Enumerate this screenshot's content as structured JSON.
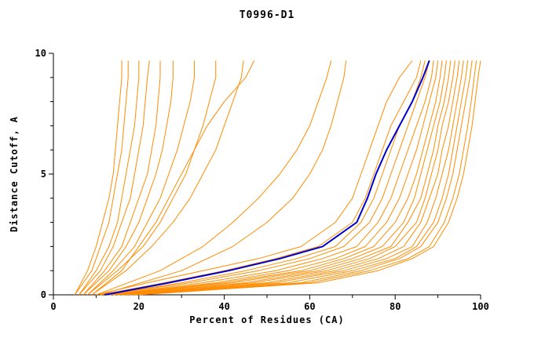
{
  "chart_data": {
    "type": "line",
    "title": "T0996-D1",
    "xlabel": "Percent of Residues (CA)",
    "ylabel": "Distance Cutoff, A",
    "xlim": [
      0,
      100
    ],
    "ylim": [
      0,
      10
    ],
    "x_major_ticks": [
      0,
      20,
      40,
      60,
      80,
      100
    ],
    "x_minor_step": 10,
    "y_major_ticks": [
      0,
      5,
      10
    ],
    "y_minor_step": 1,
    "grid": false,
    "legend": "none",
    "colors": {
      "model_line": "#ff8c00",
      "highlight_line": "#0000cd",
      "axis": "#000000"
    },
    "levels": {
      "a": [
        0,
        1,
        2,
        3,
        4,
        5,
        6,
        7,
        8,
        9,
        9.7
      ],
      "b": [
        0,
        0.5,
        1,
        1.5,
        2,
        3,
        4,
        5,
        6,
        7,
        8,
        9,
        9.7
      ]
    },
    "series": [
      {
        "color": "#ff8c00",
        "width": 1,
        "levels": "a",
        "x": [
          5,
          8,
          10,
          11.5,
          13,
          14,
          14.5,
          15,
          15.5,
          16,
          16
        ]
      },
      {
        "color": "#ff8c00",
        "width": 1,
        "levels": "a",
        "x": [
          5,
          9,
          11,
          13,
          14,
          15,
          16,
          16.5,
          17,
          17.5,
          17.5
        ]
      },
      {
        "color": "#ff8c00",
        "width": 1,
        "levels": "a",
        "x": [
          6,
          10,
          13,
          15,
          16,
          17,
          18,
          19,
          19.5,
          20,
          20
        ]
      },
      {
        "color": "#ff8c00",
        "width": 1,
        "levels": "a",
        "x": [
          6,
          11,
          14,
          16,
          18,
          19,
          20,
          21,
          21.5,
          22,
          22.5
        ]
      },
      {
        "color": "#ff8c00",
        "width": 1,
        "levels": "a",
        "x": [
          7,
          12,
          16,
          18,
          20,
          22,
          23,
          24,
          24.5,
          25,
          25
        ]
      },
      {
        "color": "#ff8c00",
        "width": 1,
        "levels": "a",
        "x": [
          7,
          13,
          17,
          20,
          22,
          24,
          25.5,
          26.5,
          27.5,
          28,
          28
        ]
      },
      {
        "color": "#ff8c00",
        "width": 1,
        "levels": "a",
        "x": [
          8,
          14,
          19,
          22,
          25,
          27,
          29,
          30.5,
          32,
          33,
          33
        ]
      },
      {
        "color": "#ff8c00",
        "width": 1,
        "levels": "a",
        "x": [
          8,
          15,
          21,
          25,
          28,
          31,
          33,
          35,
          36.5,
          38,
          38
        ]
      },
      {
        "color": "#ff8c00",
        "width": 1,
        "levels": "a",
        "x": [
          9,
          17,
          23,
          28,
          32,
          35,
          38,
          40,
          42,
          44,
          44.5
        ]
      },
      {
        "color": "#ff8c00",
        "width": 1,
        "levels": "a",
        "x": [
          9,
          16,
          20,
          24,
          27,
          30,
          33,
          36,
          40,
          45,
          47
        ]
      },
      {
        "color": "#ff8c00",
        "width": 1,
        "levels": "a",
        "x": [
          10,
          25,
          35,
          42,
          48,
          53,
          57,
          60,
          62,
          64,
          65
        ]
      },
      {
        "color": "#ff8c00",
        "width": 1,
        "levels": "a",
        "x": [
          11,
          30,
          42,
          50,
          56,
          60,
          63,
          65,
          66.5,
          68,
          68.5
        ]
      },
      {
        "color": "#ff8c00",
        "width": 1,
        "levels": "b",
        "x": [
          10,
          22,
          35,
          48,
          58,
          66,
          70,
          72,
          74,
          76,
          78,
          81,
          84
        ]
      },
      {
        "color": "#ff8c00",
        "width": 1,
        "levels": "b",
        "x": [
          11,
          26,
          40,
          52,
          62,
          70,
          73,
          75,
          77,
          79,
          82,
          85,
          86
        ]
      },
      {
        "color": "#ff8c00",
        "width": 1,
        "levels": "b",
        "x": [
          12,
          30,
          45,
          57,
          66,
          72,
          75,
          77,
          79,
          81,
          84,
          86,
          87
        ]
      },
      {
        "color": "#ff8c00",
        "width": 1,
        "levels": "b",
        "x": [
          12,
          32,
          48,
          60,
          68,
          74,
          77,
          79,
          81,
          83,
          85,
          87,
          88
        ]
      },
      {
        "color": "#ff8c00",
        "width": 1,
        "levels": "b",
        "x": [
          13,
          35,
          52,
          63,
          71,
          76,
          79,
          81,
          83,
          85,
          87,
          88.5,
          89
        ]
      },
      {
        "color": "#ff8c00",
        "width": 1,
        "levels": "b",
        "x": [
          13,
          38,
          55,
          66,
          73,
          78,
          81,
          83,
          85,
          86.5,
          88,
          89.5,
          90
        ]
      },
      {
        "color": "#ff8c00",
        "width": 1,
        "levels": "b",
        "x": [
          14,
          40,
          58,
          68,
          75,
          80,
          83,
          85,
          86.5,
          88,
          89.5,
          90.5,
          91
        ]
      },
      {
        "color": "#ff8c00",
        "width": 1,
        "levels": "b",
        "x": [
          14,
          42,
          60,
          70,
          77,
          82,
          84.5,
          86,
          87.5,
          89,
          90.5,
          91.5,
          92
        ]
      },
      {
        "color": "#ff8c00",
        "width": 1,
        "levels": "b",
        "x": [
          15,
          45,
          62,
          72,
          79,
          83,
          86,
          87.5,
          89,
          90,
          91.5,
          92.5,
          93
        ]
      },
      {
        "color": "#ff8c00",
        "width": 1,
        "levels": "b",
        "x": [
          15,
          47,
          64,
          74,
          80,
          85,
          87,
          88.5,
          90,
          91,
          92.5,
          93.5,
          94
        ]
      },
      {
        "color": "#ff8c00",
        "width": 1,
        "levels": "b",
        "x": [
          16,
          50,
          66,
          76,
          82,
          86,
          88,
          90,
          91,
          92.5,
          93.5,
          94.5,
          95
        ]
      },
      {
        "color": "#ff8c00",
        "width": 1,
        "levels": "b",
        "x": [
          16,
          52,
          68,
          78,
          84,
          87.5,
          89.5,
          91,
          92.5,
          93.5,
          94.5,
          95.5,
          96
        ]
      },
      {
        "color": "#ff8c00",
        "width": 1,
        "levels": "b",
        "x": [
          17,
          55,
          70,
          80,
          85,
          89,
          91,
          92.5,
          93.5,
          94.5,
          95.5,
          96.5,
          97
        ]
      },
      {
        "color": "#ff8c00",
        "width": 1,
        "levels": "b",
        "x": [
          18,
          58,
          72,
          81,
          86,
          90,
          92,
          93.5,
          94.5,
          95.5,
          96.5,
          97.5,
          98
        ]
      },
      {
        "color": "#ff8c00",
        "width": 1,
        "levels": "b",
        "x": [
          19,
          60,
          74,
          83,
          88,
          91.5,
          93.5,
          95,
          96,
          97,
          97.8,
          98.5,
          99
        ]
      },
      {
        "color": "#ff8c00",
        "width": 1,
        "levels": "b",
        "x": [
          20,
          62,
          76,
          84,
          89,
          92.5,
          94.5,
          96,
          97,
          98,
          98.7,
          99.4,
          100
        ]
      },
      {
        "color": "#0000cd",
        "width": 2,
        "levels": "b",
        "x": [
          12,
          27,
          41,
          53,
          63,
          71,
          73.5,
          75.5,
          78,
          81,
          84,
          86.5,
          88
        ]
      }
    ]
  }
}
